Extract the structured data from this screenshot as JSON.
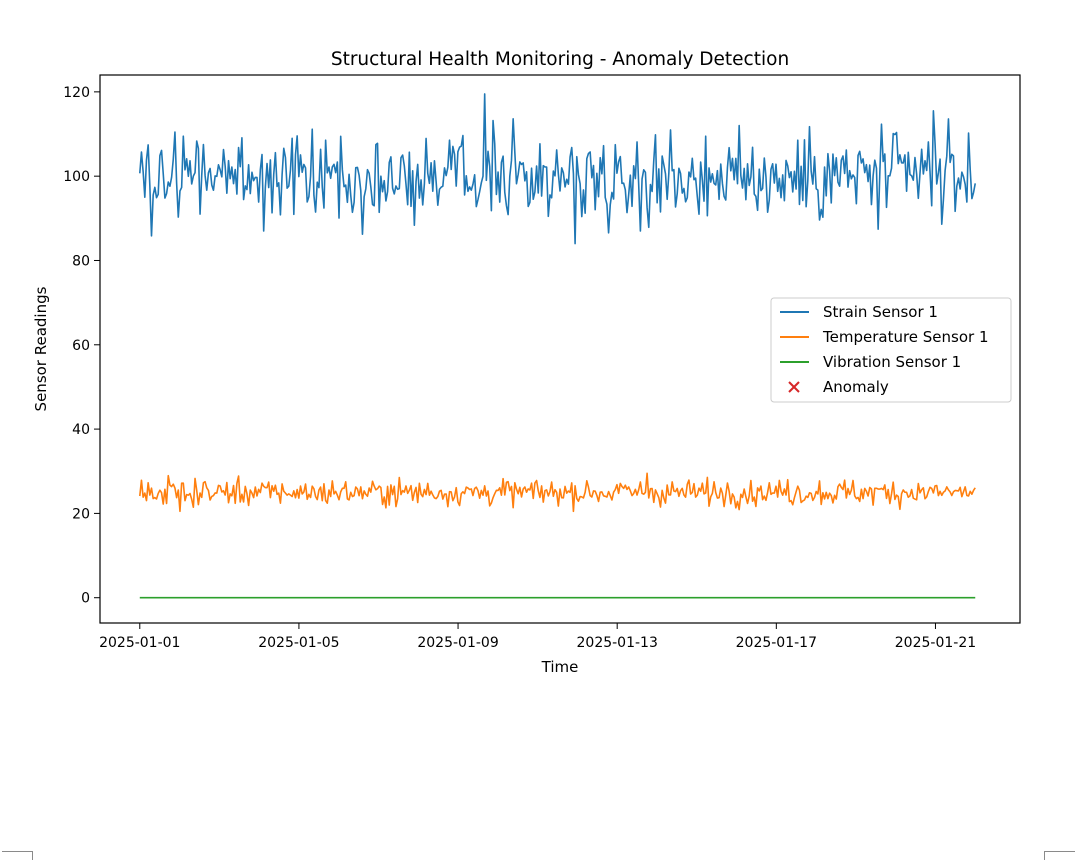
{
  "chart_data": {
    "type": "line",
    "title": "Structural Health Monitoring - Anomaly Detection",
    "xlabel": "Time",
    "ylabel": "Sensor Readings",
    "x_start": "2025-01-01",
    "x_end": "2025-01-22",
    "samples_per_series": 500,
    "xlim": [
      "2024-12-31 00:00",
      "2025-01-23 03:00"
    ],
    "ylim": [
      -6,
      124
    ],
    "yticks": [
      0,
      20,
      40,
      60,
      80,
      100,
      120
    ],
    "xticks": [
      "2025-01-01",
      "2025-01-05",
      "2025-01-09",
      "2025-01-13",
      "2025-01-17",
      "2025-01-21"
    ],
    "grid": false,
    "legend_position": "center-right",
    "series": [
      {
        "name": "Strain Sensor 1",
        "color": "#1f77b4",
        "mean": 100,
        "std": 5,
        "min": 84,
        "max": 119.5,
        "notable_points": [
          {
            "x": "2025-01-09 16:00",
            "y": 119.5
          },
          {
            "x": "2025-01-11 23:00",
            "y": 84
          },
          {
            "x": "2025-01-20 23:00",
            "y": 115.5
          },
          {
            "x": "2025-01-04 03:00",
            "y": 87
          }
        ]
      },
      {
        "name": "Temperature Sensor 1",
        "color": "#ff7f0e",
        "mean": 25,
        "std": 1.5,
        "min": 20.5,
        "max": 29.5,
        "notable_points": [
          {
            "x": "2025-01-13 18:00",
            "y": 29.5
          },
          {
            "x": "2025-01-02 00:00",
            "y": 20.5
          }
        ]
      },
      {
        "name": "Vibration Sensor 1",
        "color": "#2ca02c",
        "constant": 0
      }
    ],
    "anomalies": {
      "name": "Anomaly",
      "color": "#d62728",
      "marker": "x",
      "points": []
    }
  }
}
